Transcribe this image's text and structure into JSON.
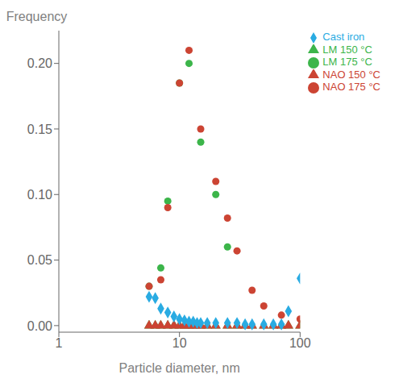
{
  "chart_data": {
    "type": "scatter",
    "xlabel": "Particle diameter, nm",
    "ylabel": "Frequency",
    "log": "x",
    "xlim": [
      1,
      100
    ],
    "xticks": [
      1,
      10,
      100
    ],
    "ylim": [
      -0.005,
      0.225
    ],
    "yticks": [
      {
        "value": 0.0,
        "label": "0.00"
      },
      {
        "value": 0.05,
        "label": "0.05"
      },
      {
        "value": 0.1,
        "label": "0.10"
      },
      {
        "value": 0.15,
        "label": "0.15"
      },
      {
        "value": 0.2,
        "label": "0.20"
      }
    ],
    "grid": false,
    "legend": "upper right",
    "series": [
      {
        "name": "LM 150 °C",
        "color": "#3cb54a",
        "marker": "triangle",
        "x": [
          5.6,
          6.3,
          7.0,
          8.0,
          9.0,
          10.0,
          11.0,
          12.0,
          13.0,
          15.0,
          17.0,
          20.0,
          25.0,
          30.0,
          35.0,
          40.0,
          50.0,
          60.0,
          70.0,
          80.0,
          100.0
        ],
        "values": [
          0.0,
          0.0,
          0.0,
          0.0,
          0.0,
          0.0,
          0.0,
          0.0,
          0.0,
          0.0,
          0.0,
          0.0,
          0.0,
          0.0,
          0.0,
          0.0,
          0.0,
          0.0,
          0.0,
          0.0,
          0.0
        ]
      },
      {
        "name": "LM 175 °C",
        "color": "#3cb54a",
        "marker": "circle",
        "x": [
          5.6,
          7.0,
          8.0,
          10.0,
          12.0,
          15.0,
          20.0,
          25.0
        ],
        "values": [
          0.03,
          0.044,
          0.095,
          0.185,
          0.2,
          0.14,
          0.1,
          0.06
        ]
      },
      {
        "name": "NAO 150 °C",
        "color": "#cc4433",
        "marker": "triangle",
        "x": [
          5.6,
          6.3,
          7.0,
          8.0,
          9.0,
          10.0,
          11.0,
          12.0,
          13.0,
          14.0,
          15.0,
          17.0,
          20.0,
          25.0,
          30.0,
          35.0,
          40.0,
          50.0,
          60.0,
          70.0,
          80.0,
          100.0
        ],
        "values": [
          0.0,
          0.0,
          0.0,
          0.0,
          0.0,
          0.0,
          0.0,
          0.0,
          0.0,
          0.0,
          0.0,
          0.0,
          0.0,
          0.0,
          0.0,
          0.0,
          0.0,
          0.0,
          0.0,
          0.0,
          0.0,
          0.0
        ]
      },
      {
        "name": "NAO 175 °C",
        "color": "#cc4433",
        "marker": "circle",
        "x": [
          5.6,
          7.0,
          8.0,
          10.0,
          12.0,
          15.0,
          20.0,
          25.0,
          30.0,
          40.0,
          50.0,
          70.0,
          100.0
        ],
        "values": [
          0.03,
          0.035,
          0.09,
          0.185,
          0.21,
          0.15,
          0.11,
          0.082,
          0.057,
          0.027,
          0.015,
          0.008,
          0.005
        ]
      },
      {
        "name": "Cast iron",
        "color": "#29abe2",
        "marker": "diamond",
        "x": [
          5.6,
          6.3,
          7.0,
          8.0,
          9.0,
          10.0,
          11.0,
          12.0,
          13.0,
          14.0,
          15.0,
          17.0,
          20.0,
          25.0,
          30.0,
          35.0,
          40.0,
          50.0,
          60.0,
          70.0,
          80.0,
          100.0
        ],
        "values": [
          0.022,
          0.021,
          0.013,
          0.01,
          0.007,
          0.005,
          0.004,
          0.003,
          0.003,
          0.002,
          0.002,
          0.002,
          0.002,
          0.002,
          0.002,
          0.001,
          0.001,
          0.001,
          0.001,
          0.001,
          0.011,
          0.036
        ]
      }
    ]
  }
}
